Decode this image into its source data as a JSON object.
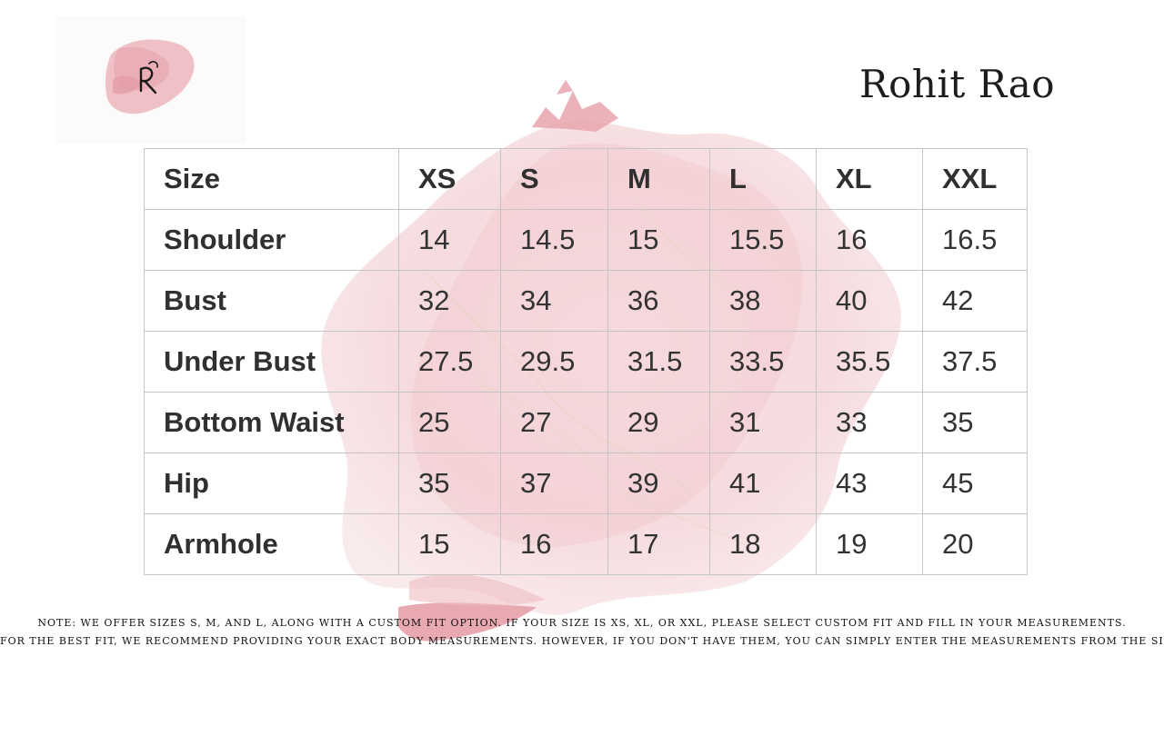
{
  "brand": {
    "name": "Rohit Rao",
    "logo_icon": "rr-monogram-icon"
  },
  "colors": {
    "accent_pink": "#e8a9b1",
    "text": "#333333",
    "grid": "#c4c4c4"
  },
  "size_table": {
    "headers": [
      "Size",
      "XS",
      "S",
      "M",
      "L",
      "XL",
      "XXL"
    ],
    "rows": [
      {
        "label": "Shoulder",
        "values": [
          "14",
          "14.5",
          "15",
          "15.5",
          "16",
          "16.5"
        ]
      },
      {
        "label": "Bust",
        "values": [
          "32",
          "34",
          "36",
          "38",
          "40",
          "42"
        ]
      },
      {
        "label": "Under Bust",
        "values": [
          "27.5",
          "29.5",
          "31.5",
          "33.5",
          "35.5",
          "37.5"
        ]
      },
      {
        "label": "Bottom Waist",
        "values": [
          "25",
          "27",
          "29",
          "31",
          "33",
          "35"
        ]
      },
      {
        "label": "Hip",
        "values": [
          "35",
          "37",
          "39",
          "41",
          "43",
          "45"
        ]
      },
      {
        "label": "Armhole",
        "values": [
          "15",
          "16",
          "17",
          "18",
          "19",
          "20"
        ]
      }
    ]
  },
  "notes": {
    "line1": "NOTE: WE OFFER SIZES S, M, AND L, ALONG WITH A CUSTOM FIT OPTION. IF YOUR SIZE IS XS, XL, OR XXL, PLEASE SELECT CUSTOM FIT AND FILL IN YOUR MEASUREMENTS.",
    "line2": "FOR THE BEST FIT, WE RECOMMEND PROVIDING YOUR EXACT BODY MEASUREMENTS. HOWEVER, IF YOU DON'T HAVE THEM, YOU CAN SIMPLY ENTER THE MEASUREMENTS FROM THE SIZE CHART."
  }
}
